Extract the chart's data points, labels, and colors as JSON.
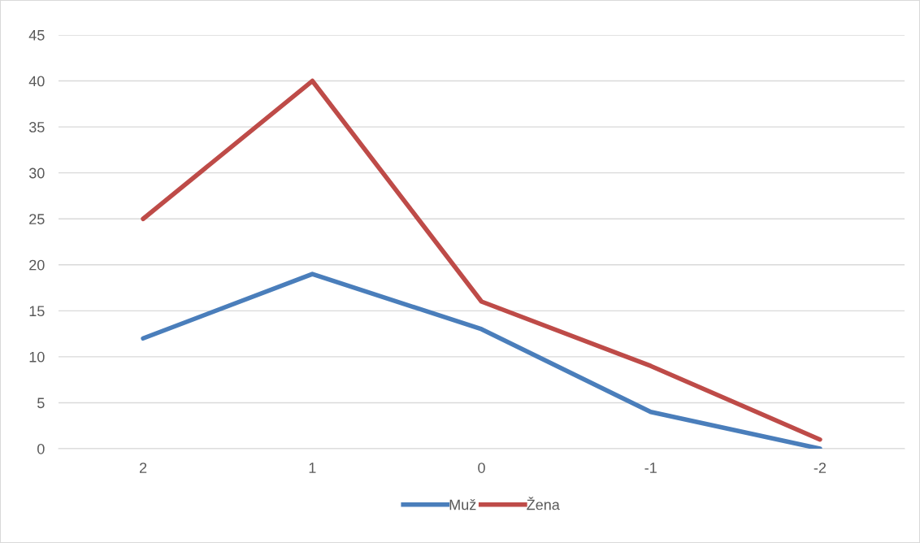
{
  "chart_data": {
    "type": "line",
    "categories": [
      "2",
      "1",
      "0",
      "-1",
      "-2"
    ],
    "series": [
      {
        "name": "Muž",
        "color": "#4a7ebb",
        "values": [
          12,
          19,
          13,
          4,
          0
        ]
      },
      {
        "name": "Žena",
        "color": "#be4b48",
        "values": [
          25,
          40,
          16,
          9,
          1
        ]
      }
    ],
    "ylim": [
      0,
      45
    ],
    "yticks": [
      0,
      5,
      10,
      15,
      20,
      25,
      30,
      35,
      40,
      45
    ],
    "grid": "y",
    "legend": "bottom",
    "marker": "none",
    "line_style": "solid"
  }
}
